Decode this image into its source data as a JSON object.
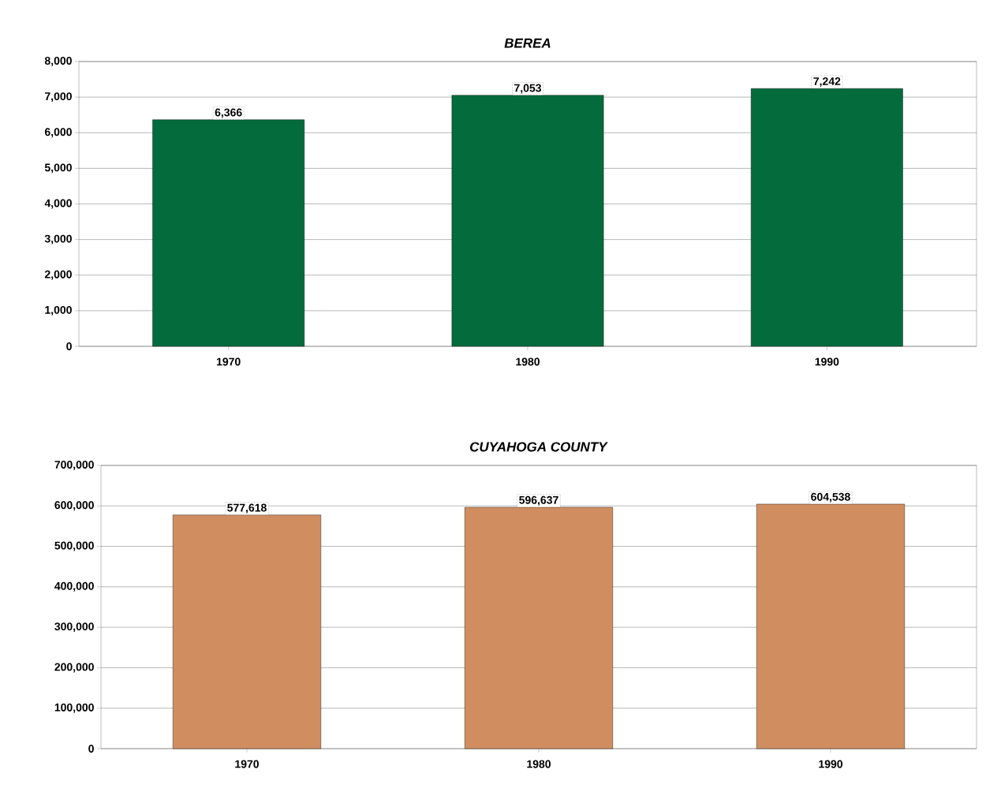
{
  "chart_data": [
    {
      "type": "bar",
      "title": "*BEREA*",
      "categories": [
        "1970",
        "1980",
        "1990"
      ],
      "values": [
        6366,
        7053,
        7242
      ],
      "value_labels": [
        "6,366",
        "7,053",
        "7,242"
      ],
      "color": "#046c3c",
      "ylim": [
        0,
        8000
      ],
      "yticks": [
        {
          "value": 0,
          "label": "0"
        },
        {
          "value": 1000,
          "label": "1,000"
        },
        {
          "value": 2000,
          "label": "2,000"
        },
        {
          "value": 3000,
          "label": "3,000"
        },
        {
          "value": 4000,
          "label": "4,000"
        },
        {
          "value": 5000,
          "label": "5,000"
        },
        {
          "value": 6000,
          "label": "6,000"
        },
        {
          "value": 7000,
          "label": "7,000"
        },
        {
          "value": 8000,
          "label": "8,000"
        }
      ],
      "grid": "y"
    },
    {
      "type": "bar",
      "title": "*CUYAHOGA COUNTY*",
      "categories": [
        "1970",
        "1980",
        "1990"
      ],
      "values": [
        577618,
        596637,
        604538
      ],
      "value_labels": [
        "577,618",
        "596,637",
        "604,538"
      ],
      "color": "#d08e60",
      "ylim": [
        0,
        700000
      ],
      "yticks": [
        {
          "value": 0,
          "label": "0"
        },
        {
          "value": 100000,
          "label": "100,000"
        },
        {
          "value": 200000,
          "label": "200,000"
        },
        {
          "value": 300000,
          "label": "300,000"
        },
        {
          "value": 400000,
          "label": "400,000"
        },
        {
          "value": 500000,
          "label": "500,000"
        },
        {
          "value": 600000,
          "label": "600,000"
        },
        {
          "value": 700000,
          "label": "700,000"
        }
      ],
      "grid": "y"
    }
  ]
}
